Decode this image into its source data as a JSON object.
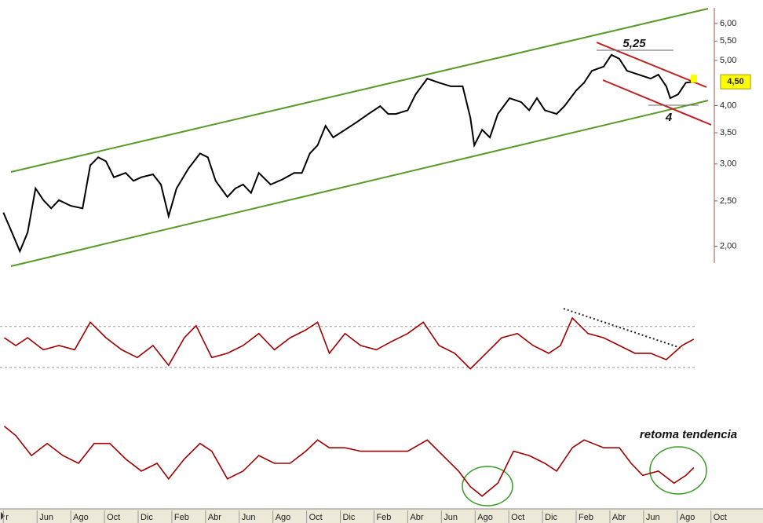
{
  "chart_data": [
    {
      "type": "line",
      "log_scale": true,
      "color": "#000000",
      "xlim": [
        -0.2,
        42.2
      ],
      "ylim": [
        1.84,
        6.48
      ],
      "yticks": [
        {
          "value": 2,
          "label": "2,00"
        },
        {
          "value": 2.5,
          "label": "2,50"
        },
        {
          "value": 3,
          "label": "3,00"
        },
        {
          "value": 3.5,
          "label": "3,50"
        },
        {
          "value": 4,
          "label": "4,00"
        },
        {
          "value": 5,
          "label": "5,00"
        },
        {
          "value": 5.5,
          "label": "5,50"
        },
        {
          "value": 6,
          "label": "6,00"
        }
      ],
      "x": [
        0,
        0.51,
        0.98,
        1.44,
        1.91,
        2.37,
        2.84,
        3.3,
        4.0,
        4.7,
        5.16,
        5.63,
        6.09,
        6.56,
        7.26,
        7.72,
        8.19,
        8.88,
        9.35,
        9.81,
        10.28,
        10.98,
        11.67,
        12.14,
        12.6,
        13.3,
        13.77,
        14.23,
        14.7,
        15.16,
        15.86,
        16.56,
        17.26,
        17.72,
        18.19,
        18.65,
        19.12,
        19.58,
        20.28,
        20.98,
        21.67,
        22.37,
        22.84,
        23.3,
        24.0,
        24.47,
        25.16,
        25.86,
        26.56,
        27.26,
        27.72,
        27.95,
        28.42,
        28.88,
        29.35,
        30.05,
        30.74,
        31.21,
        31.67,
        32.14,
        32.84,
        33.3,
        34.0,
        34.47,
        34.93,
        35.63,
        36.09,
        36.56,
        37.02,
        37.72,
        38.42,
        38.88,
        39.35,
        39.58,
        40.05,
        40.51,
        40.98
      ],
      "values": [
        2.36,
        2.14,
        1.95,
        2.14,
        2.66,
        2.51,
        2.41,
        2.51,
        2.44,
        2.41,
        2.98,
        3.1,
        3.04,
        2.81,
        2.87,
        2.76,
        2.81,
        2.85,
        2.71,
        2.32,
        2.66,
        2.93,
        3.16,
        3.1,
        2.76,
        2.55,
        2.66,
        2.71,
        2.6,
        2.87,
        2.71,
        2.78,
        2.87,
        2.87,
        3.16,
        3.29,
        3.62,
        3.42,
        3.55,
        3.69,
        3.84,
        3.99,
        3.84,
        3.84,
        3.91,
        4.23,
        4.57,
        4.48,
        4.4,
        4.4,
        3.77,
        3.29,
        3.55,
        3.42,
        3.84,
        4.15,
        4.07,
        3.91,
        4.15,
        3.91,
        3.84,
        3.99,
        4.31,
        4.48,
        4.75,
        4.85,
        5.14,
        5.04,
        4.75,
        4.66,
        4.57,
        4.66,
        4.4,
        4.15,
        4.23,
        4.48,
        4.5
      ],
      "last_value_label": "4,50",
      "annotations": [
        "5,25",
        "4"
      ]
    },
    {
      "type": "line",
      "color": "#a00000",
      "xlim": [
        -0.2,
        42.2
      ],
      "ylim": [
        0,
        100
      ],
      "ref_lines": [
        77,
        19
      ],
      "x": [
        0.05,
        0.74,
        1.44,
        2.37,
        3.3,
        4.23,
        5.16,
        6.09,
        7.02,
        7.95,
        8.88,
        9.81,
        10.74,
        11.44,
        12.37,
        13.3,
        14.23,
        15.16,
        16.09,
        17.02,
        17.95,
        18.65,
        19.35,
        20.28,
        21.21,
        22.14,
        23.07,
        24.0,
        24.93,
        25.86,
        26.79,
        27.72,
        28.65,
        29.58,
        30.51,
        31.44,
        32.37,
        33.07,
        33.77,
        34.7,
        35.63,
        36.56,
        37.49,
        38.42,
        39.35,
        40.28,
        40.98
      ],
      "values": [
        61,
        50,
        61,
        44,
        50,
        44,
        83,
        61,
        44,
        33,
        50,
        22,
        61,
        78,
        33,
        39,
        50,
        67,
        44,
        61,
        72,
        83,
        39,
        67,
        50,
        44,
        56,
        67,
        83,
        50,
        39,
        17,
        39,
        61,
        67,
        50,
        39,
        50,
        89,
        67,
        61,
        50,
        39,
        39,
        30,
        50,
        59
      ]
    },
    {
      "type": "line",
      "color": "#a00000",
      "xlim": [
        -0.2,
        42.2
      ],
      "ylim": [
        0,
        100
      ],
      "xticks": [
        {
          "value": 0,
          "label": "r"
        },
        {
          "value": 2,
          "label": "Jun"
        },
        {
          "value": 4,
          "label": "Ago"
        },
        {
          "value": 6,
          "label": "Oct"
        },
        {
          "value": 8,
          "label": "Dic"
        },
        {
          "value": 10,
          "label": "Feb"
        },
        {
          "value": 12,
          "label": "Abr"
        },
        {
          "value": 14,
          "label": "Jun"
        },
        {
          "value": 16,
          "label": "Ago"
        },
        {
          "value": 18,
          "label": "Oct"
        },
        {
          "value": 20,
          "label": "Dic"
        },
        {
          "value": 22,
          "label": "Feb"
        },
        {
          "value": 24,
          "label": "Abr"
        },
        {
          "value": 26,
          "label": "Jun"
        },
        {
          "value": 28,
          "label": "Ago"
        },
        {
          "value": 30,
          "label": "Oct"
        },
        {
          "value": 32,
          "label": "Dic"
        },
        {
          "value": 34,
          "label": "Feb"
        },
        {
          "value": 36,
          "label": "Abr"
        },
        {
          "value": 38,
          "label": "Jun"
        },
        {
          "value": 40,
          "label": "Ago"
        },
        {
          "value": 42,
          "label": "Oct"
        }
      ],
      "x": [
        0.05,
        0.74,
        1.67,
        2.6,
        3.53,
        4.46,
        5.39,
        6.32,
        7.26,
        8.19,
        9.12,
        9.81,
        10.74,
        11.67,
        12.37,
        13.3,
        14.23,
        15.16,
        16.09,
        17.02,
        17.95,
        18.65,
        19.35,
        20.28,
        21.21,
        22.14,
        23.07,
        24.0,
        25.16,
        26.09,
        27.02,
        27.72,
        28.42,
        29.35,
        30.28,
        31.21,
        32.14,
        32.84,
        33.77,
        34.47,
        35.63,
        36.56,
        37.26,
        37.95,
        38.88,
        39.81,
        40.51,
        40.98
      ],
      "values": [
        93,
        82,
        59,
        73,
        59,
        50,
        73,
        73,
        55,
        41,
        50,
        32,
        55,
        73,
        64,
        32,
        41,
        59,
        50,
        50,
        64,
        77,
        68,
        68,
        64,
        64,
        64,
        64,
        77,
        59,
        41,
        23,
        12,
        27,
        64,
        59,
        50,
        41,
        68,
        77,
        68,
        68,
        50,
        36,
        41,
        27,
        36,
        45
      ],
      "annotations": [
        "retoma tendencia"
      ]
    }
  ]
}
